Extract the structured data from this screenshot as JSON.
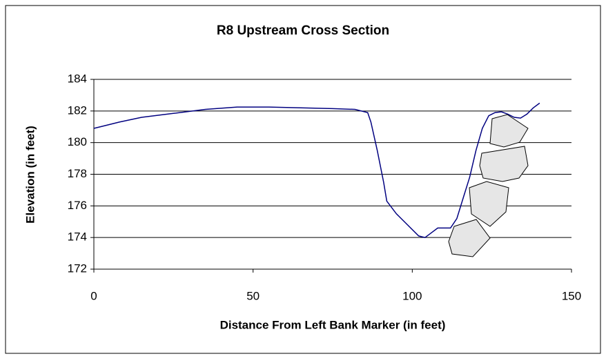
{
  "chart_data": {
    "type": "line",
    "title": "R8 Upstream Cross Section",
    "x_label": "Distance From Left Bank Marker (in feet)",
    "y_label": "Elevation (in feet)",
    "x": [
      0,
      3,
      8,
      15,
      25,
      35,
      45,
      55,
      65,
      75,
      82,
      86,
      87,
      89,
      91,
      92,
      95,
      98,
      102,
      104,
      106,
      108,
      110,
      112,
      114,
      116,
      118,
      120,
      122,
      124,
      126,
      128,
      130,
      132,
      134,
      136,
      138,
      140
    ],
    "series": [
      {
        "color": "#000080",
        "values": [
          180.9,
          181.05,
          181.3,
          181.6,
          181.85,
          182.1,
          182.25,
          182.25,
          182.2,
          182.15,
          182.1,
          181.9,
          181.3,
          179.5,
          177.5,
          176.3,
          175.5,
          174.9,
          174.1,
          174.0,
          174.3,
          174.6,
          174.6,
          174.6,
          175.2,
          176.5,
          177.8,
          179.5,
          180.9,
          181.7,
          181.9,
          181.95,
          181.8,
          181.6,
          181.55,
          181.8,
          182.2,
          182.5
        ]
      }
    ],
    "xlim": [
      0,
      150
    ],
    "xticks": [
      0,
      50,
      100,
      150
    ],
    "ylim": [
      172,
      184
    ],
    "yticks": [
      172,
      174,
      176,
      178,
      180,
      182,
      184
    ],
    "grid": true
  }
}
